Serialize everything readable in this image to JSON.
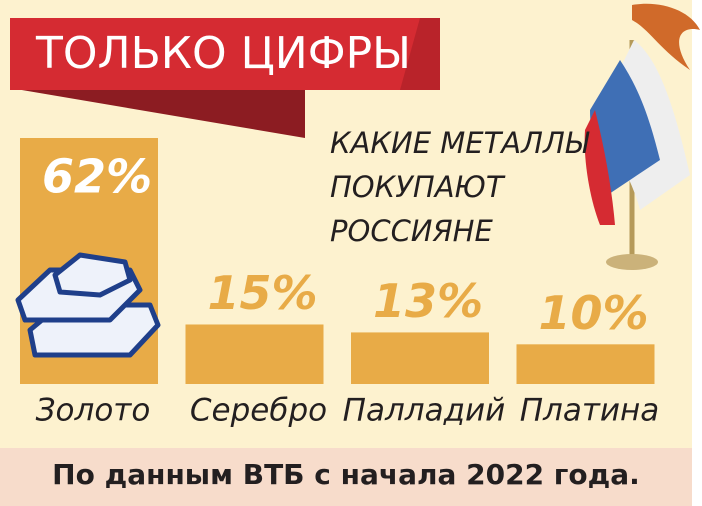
{
  "chart_data": {
    "type": "bar",
    "title": "ТОЛЬКО ЦИФРЫ",
    "subtitle": [
      "КАКИЕ МЕТАЛЛЫ",
      "ПОКУПАЮТ",
      "РОССИЯНЕ"
    ],
    "categories": [
      "Золото",
      "Серебро",
      "Палладий",
      "Платина"
    ],
    "values": [
      62,
      15,
      13,
      10
    ],
    "value_labels": [
      "62%",
      "15%",
      "13%",
      "10%"
    ],
    "color": "#e8ab47",
    "source": "По данным ВТБ с начала 2022 года."
  }
}
